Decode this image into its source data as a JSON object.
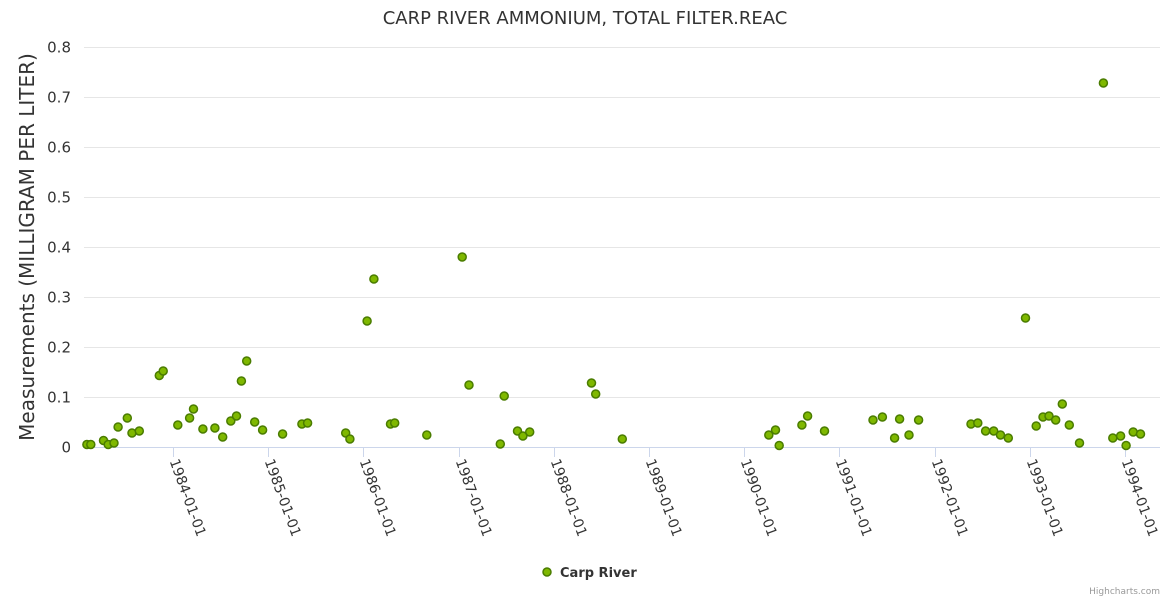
{
  "chart_data": {
    "type": "scatter",
    "title": "CARP RIVER AMMONIUM, TOTAL FILTER.REAC",
    "ylabel": "Measurements (MILLIGRAM PER LITER)",
    "xlabel": "",
    "ylim": [
      0,
      0.8
    ],
    "xlim": [
      "1983-01-25",
      "1994-05-15"
    ],
    "yticks": [
      0,
      0.1,
      0.2,
      0.3,
      0.4,
      0.5,
      0.6,
      0.7,
      0.8
    ],
    "ytick_labels": [
      "0",
      "0.1",
      "0.2",
      "0.3",
      "0.4",
      "0.5",
      "0.6",
      "0.7",
      "0.8"
    ],
    "xticks": [
      "1984-01-01",
      "1985-01-01",
      "1986-01-01",
      "1987-01-01",
      "1988-01-01",
      "1989-01-01",
      "1990-01-01",
      "1991-01-01",
      "1992-01-01",
      "1993-01-01",
      "1994-01-01"
    ],
    "grid": true,
    "legend_position": "bottom-center",
    "series": [
      {
        "name": "Carp River",
        "color": "#7fb800",
        "marker_border": "#4a7c00",
        "points": [
          [
            "1983-02-05",
            0.005
          ],
          [
            "1983-02-20",
            0.005
          ],
          [
            "1983-04-10",
            0.013
          ],
          [
            "1983-04-28",
            0.005
          ],
          [
            "1983-05-20",
            0.008
          ],
          [
            "1983-06-05",
            0.04
          ],
          [
            "1983-07-10",
            0.058
          ],
          [
            "1983-07-28",
            0.028
          ],
          [
            "1983-08-25",
            0.032
          ],
          [
            "1983-11-10",
            0.143
          ],
          [
            "1983-11-25",
            0.152
          ],
          [
            "1984-01-20",
            0.044
          ],
          [
            "1984-03-05",
            0.058
          ],
          [
            "1984-03-20",
            0.076
          ],
          [
            "1984-04-25",
            0.036
          ],
          [
            "1984-06-10",
            0.038
          ],
          [
            "1984-07-10",
            0.02
          ],
          [
            "1984-08-10",
            0.052
          ],
          [
            "1984-09-01",
            0.062
          ],
          [
            "1984-09-20",
            0.132
          ],
          [
            "1984-10-10",
            0.172
          ],
          [
            "1984-11-10",
            0.05
          ],
          [
            "1984-12-10",
            0.034
          ],
          [
            "1985-02-25",
            0.026
          ],
          [
            "1985-05-10",
            0.046
          ],
          [
            "1985-06-01",
            0.048
          ],
          [
            "1985-10-25",
            0.028
          ],
          [
            "1985-11-10",
            0.016
          ],
          [
            "1986-01-15",
            0.252
          ],
          [
            "1986-02-10",
            0.336
          ],
          [
            "1986-04-15",
            0.046
          ],
          [
            "1986-05-01",
            0.048
          ],
          [
            "1986-09-01",
            0.024
          ],
          [
            "1987-01-15",
            0.38
          ],
          [
            "1987-02-10",
            0.124
          ],
          [
            "1987-06-10",
            0.006
          ],
          [
            "1987-06-25",
            0.102
          ],
          [
            "1987-08-15",
            0.032
          ],
          [
            "1987-09-05",
            0.022
          ],
          [
            "1987-10-01",
            0.03
          ],
          [
            "1988-05-25",
            0.128
          ],
          [
            "1988-06-10",
            0.106
          ],
          [
            "1988-09-20",
            0.016
          ],
          [
            "1990-04-05",
            0.024
          ],
          [
            "1990-05-01",
            0.034
          ],
          [
            "1990-05-15",
            0.003
          ],
          [
            "1990-08-10",
            0.044
          ],
          [
            "1990-09-01",
            0.062
          ],
          [
            "1990-11-05",
            0.032
          ],
          [
            "1991-05-10",
            0.054
          ],
          [
            "1991-06-15",
            0.06
          ],
          [
            "1991-08-01",
            0.018
          ],
          [
            "1991-08-20",
            0.056
          ],
          [
            "1991-09-25",
            0.024
          ],
          [
            "1991-11-01",
            0.054
          ],
          [
            "1992-05-20",
            0.046
          ],
          [
            "1992-06-15",
            0.048
          ],
          [
            "1992-07-15",
            0.032
          ],
          [
            "1992-08-15",
            0.032
          ],
          [
            "1992-09-10",
            0.024
          ],
          [
            "1992-10-10",
            0.018
          ],
          [
            "1992-12-15",
            0.258
          ],
          [
            "1993-01-25",
            0.042
          ],
          [
            "1993-02-20",
            0.06
          ],
          [
            "1993-03-15",
            0.062
          ],
          [
            "1993-04-10",
            0.054
          ],
          [
            "1993-05-05",
            0.086
          ],
          [
            "1993-06-01",
            0.044
          ],
          [
            "1993-07-10",
            0.008
          ],
          [
            "1993-10-10",
            0.728
          ],
          [
            "1993-11-15",
            0.018
          ],
          [
            "1993-12-15",
            0.022
          ],
          [
            "1994-01-05",
            0.003
          ],
          [
            "1994-02-01",
            0.03
          ],
          [
            "1994-03-01",
            0.026
          ]
        ]
      }
    ]
  },
  "credits": "Highcharts.com"
}
